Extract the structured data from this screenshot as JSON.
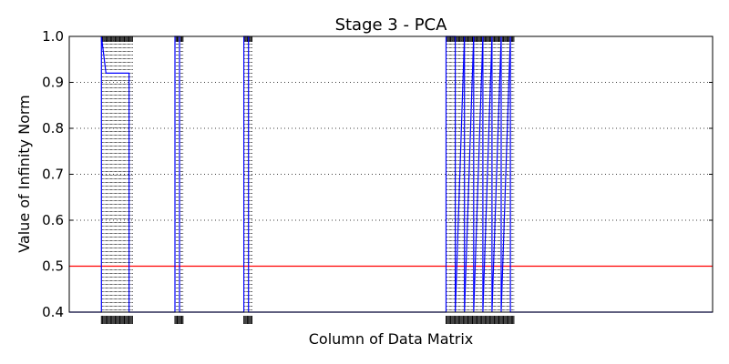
{
  "chart_data": {
    "type": "line",
    "title": "Stage 3 - PCA",
    "xlabel": "Column of Data Matrix",
    "ylabel": "Value of Infinity Norm",
    "xlim": [
      0,
      140
    ],
    "ylim": [
      0.4,
      1.0
    ],
    "yticks": [
      0.4,
      0.5,
      0.6,
      0.7,
      0.8,
      0.9,
      1.0
    ],
    "ytick_labels": [
      "0.4",
      "0.5",
      "0.6",
      "0.7",
      "0.8",
      "0.9",
      "1.0"
    ],
    "x_tick_labels_visible": false,
    "grid": "y-dotted",
    "threshold": {
      "y": 0.5,
      "color": "#ff0000"
    },
    "line_color": "#0000ff",
    "series": [
      {
        "x": [
          0,
          7,
          7,
          8,
          8,
          13,
          13,
          23,
          23,
          24,
          24,
          38,
          38,
          39,
          39,
          82,
          82,
          84,
          84,
          86,
          86,
          88,
          88,
          90,
          90,
          92,
          92,
          94,
          94,
          96,
          96,
          140
        ],
        "y": [
          0.4,
          0.4,
          1.0,
          0.92,
          0.92,
          0.92,
          0.4,
          0.4,
          1.0,
          1.0,
          0.4,
          0.4,
          1.0,
          1.0,
          0.4,
          0.4,
          1.0,
          1.0,
          0.4,
          1.0,
          0.4,
          1.0,
          0.4,
          1.0,
          0.4,
          1.0,
          0.4,
          1.0,
          0.4,
          1.0,
          0.4,
          0.4
        ]
      }
    ]
  }
}
